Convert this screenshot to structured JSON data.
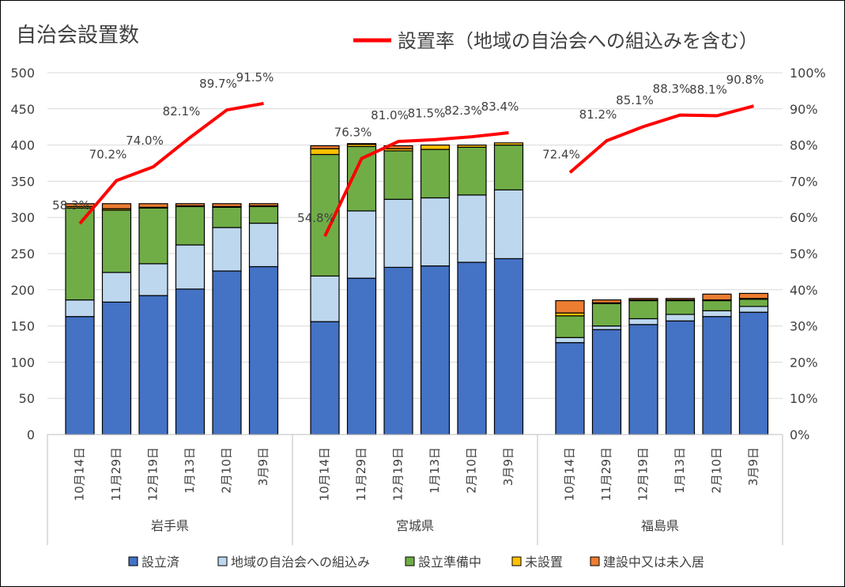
{
  "chart_data": {
    "type": "bar",
    "subtype": "stacked-bar-with-line",
    "title": "自治会設置数",
    "line_legend": "設置率（地域の自治会への組込みを含む）",
    "groups": [
      {
        "name": "岩手県",
        "dates": [
          "10月14日",
          "11月29日",
          "12月19日",
          "1月13日",
          "2月10日",
          "3月9日"
        ]
      },
      {
        "name": "宮城県",
        "dates": [
          "10月14日",
          "11月29日",
          "12月19日",
          "1月13日",
          "2月10日",
          "3月9日"
        ]
      },
      {
        "name": "福島県",
        "dates": [
          "10月14日",
          "11月29日",
          "12月19日",
          "1月13日",
          "2月10日",
          "3月9日"
        ]
      }
    ],
    "series": [
      {
        "name": "設立済",
        "color": "#4472c4",
        "values": [
          [
            163,
            183,
            192,
            201,
            226,
            232
          ],
          [
            156,
            216,
            231,
            233,
            238,
            243
          ],
          [
            127,
            145,
            152,
            157,
            163,
            169
          ]
        ]
      },
      {
        "name": "地域の自治会への組込み",
        "color": "#bdd7ee",
        "values": [
          [
            23,
            41,
            44,
            61,
            60,
            60
          ],
          [
            63,
            93,
            94,
            94,
            93,
            95
          ],
          [
            7,
            5,
            8,
            9,
            8,
            8
          ]
        ]
      },
      {
        "name": "設立準備中",
        "color": "#70ad47",
        "values": [
          [
            127,
            86,
            77,
            53,
            28,
            23
          ],
          [
            168,
            89,
            67,
            67,
            66,
            62
          ],
          [
            30,
            31,
            25,
            19,
            14,
            10
          ]
        ]
      },
      {
        "name": "未設置",
        "color": "#ffc000",
        "values": [
          [
            2,
            2,
            1,
            1,
            1,
            1
          ],
          [
            8,
            3,
            3,
            6,
            3,
            3
          ],
          [
            4,
            1,
            1,
            1,
            1,
            1
          ]
        ]
      },
      {
        "name": "建設中又は未入居",
        "color": "#ed7d31",
        "values": [
          [
            4,
            7,
            5,
            3,
            4,
            3
          ],
          [
            4,
            1,
            4,
            0,
            0,
            0
          ],
          [
            17,
            4,
            2,
            2,
            8,
            7
          ]
        ]
      }
    ],
    "rate": {
      "name": "設置率（地域の自治会への組込みを含む）",
      "color": "#ff0000",
      "values": [
        [
          58.3,
          70.2,
          74.0,
          82.1,
          89.7,
          91.5
        ],
        [
          54.8,
          76.3,
          81.0,
          81.5,
          82.3,
          83.4
        ],
        [
          72.4,
          81.2,
          85.1,
          88.3,
          88.1,
          90.8
        ]
      ],
      "labels": [
        [
          "58.3%",
          "70.2%",
          "74.0%",
          "82.1%",
          "89.7%",
          "91.5%"
        ],
        [
          "54.8%",
          "76.3%",
          "81.0%",
          "81.5%",
          "82.3%",
          "83.4%"
        ],
        [
          "72.4%",
          "81.2%",
          "85.1%",
          "88.3%",
          "88.1%",
          "90.8%"
        ]
      ]
    },
    "y_left": {
      "min": 0,
      "max": 500,
      "ticks": [
        "0",
        "50",
        "100",
        "150",
        "200",
        "250",
        "300",
        "350",
        "400",
        "450",
        "500"
      ]
    },
    "y_right": {
      "min": 0,
      "max": 100,
      "ticks": [
        "0%",
        "10%",
        "20%",
        "30%",
        "40%",
        "50%",
        "60%",
        "70%",
        "80%",
        "90%",
        "100%"
      ]
    },
    "grid": true,
    "legend_position": "bottom"
  }
}
